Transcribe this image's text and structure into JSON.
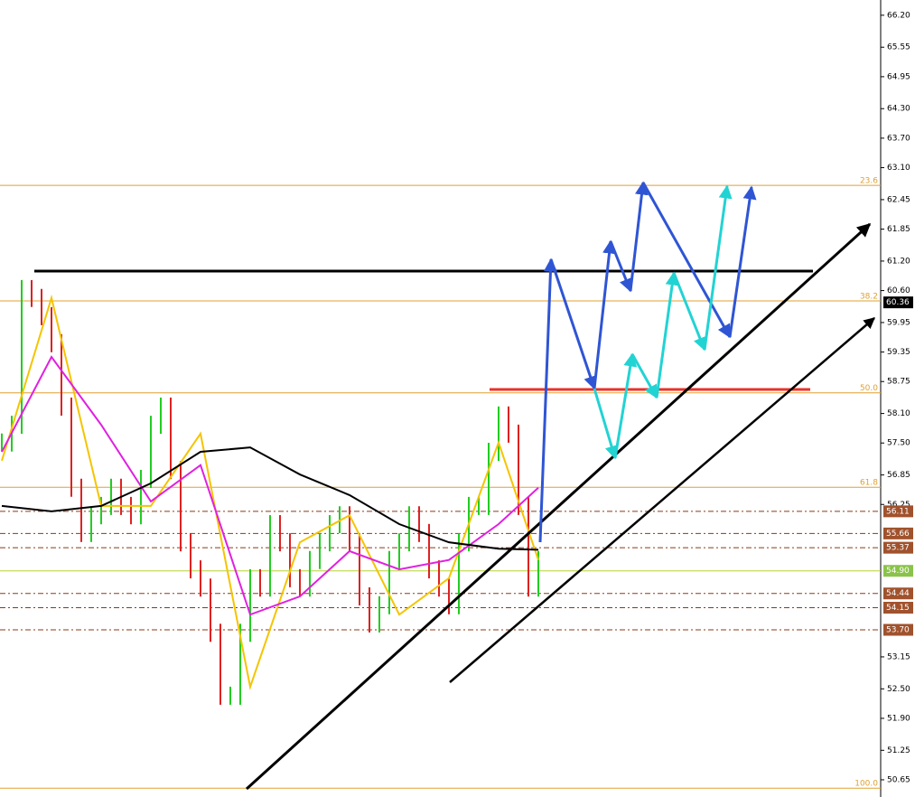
{
  "chart_data": {
    "type": "candlestick",
    "ylim": [
      50.3,
      66.51
    ],
    "yticks": [
      {
        "value": 66.2,
        "label": "66.20"
      },
      65.55,
      64.95,
      {
        "value": 64.3,
        "label": "64.30"
      },
      {
        "value": 63.7,
        "label": "63.70"
      },
      {
        "value": 63.1,
        "label": "63.10"
      },
      62.45,
      61.85,
      {
        "value": 61.2,
        "label": "61.20"
      },
      {
        "value": 60.6,
        "label": "60.60"
      },
      59.95,
      59.35,
      58.75,
      {
        "value": 58.1,
        "label": "58.10"
      },
      {
        "value": 57.5,
        "label": "57.50"
      },
      56.85,
      56.25,
      53.15,
      {
        "value": 52.5,
        "label": "52.50"
      },
      {
        "value": 51.9,
        "label": "51.90"
      },
      51.25,
      50.65
    ],
    "close": [
      57.51,
      57.87,
      60.63,
      60.45,
      60.08,
      59.53,
      58.24,
      56.59,
      55.67,
      56.03,
      56.22,
      56.59,
      56.22,
      56.03,
      56.77,
      57.87,
      58.24,
      56.95,
      55.48,
      54.93,
      54.56,
      53.64,
      52.36,
      52.36,
      53.64,
      54.75,
      54.56,
      55.85,
      55.48,
      54.75,
      54.56,
      55.12,
      55.48,
      55.85,
      56.03,
      55.48,
      54.38,
      53.83,
      54.2,
      55.12,
      55.48,
      56.03,
      55.67,
      54.93,
      54.56,
      54.2,
      55.48,
      56.22,
      56.22,
      57.32,
      58.06,
      57.69,
      56.22,
      54.56,
      55.12
    ],
    "ma_x": [
      0,
      5,
      10,
      15,
      20,
      25,
      30,
      35,
      40,
      45,
      50,
      54
    ],
    "ma": [
      {
        "color": "#f5c400",
        "values": [
          57.14,
          60.45,
          56.22,
          56.22,
          57.69,
          52.54,
          55.48,
          56.03,
          54.01,
          54.75,
          57.51,
          55.12
        ]
      },
      {
        "color": "#e020e0",
        "values": [
          57.32,
          59.25,
          57.87,
          56.31,
          57.05,
          54.01,
          54.38,
          55.3,
          54.93,
          55.12,
          55.85,
          56.59
        ]
      },
      {
        "color": "#000000",
        "values": [
          56.22,
          56.11,
          56.22,
          56.68,
          57.32,
          57.41,
          56.86,
          56.44,
          55.85,
          55.48,
          55.35,
          55.33
        ]
      }
    ],
    "fib_levels": [
      {
        "label": "23.6",
        "price": 62.74
      },
      {
        "label": "38.2",
        "price": 60.39
      },
      {
        "label": "50.0",
        "price": 58.52
      },
      {
        "label": "61.8",
        "price": 56.6
      },
      {
        "label": "100.0",
        "price": 50.48
      }
    ],
    "price_tags": [
      {
        "value": 60.36,
        "color": "#000000"
      },
      {
        "value": 56.11,
        "color": "#a0522d"
      },
      {
        "value": 55.66,
        "color": "#a0522d"
      },
      {
        "value": 55.37,
        "color": "#a0522d"
      },
      {
        "value": {
          "value": 54.9,
          "label": "54.90"
        },
        "color": "#8bc34a"
      },
      {
        "value": 54.44,
        "color": "#a0522d"
      },
      {
        "value": 54.15,
        "color": "#a0522d"
      },
      {
        "value": {
          "value": 53.7,
          "label": "53.70"
        },
        "color": "#a0522d"
      }
    ]
  }
}
